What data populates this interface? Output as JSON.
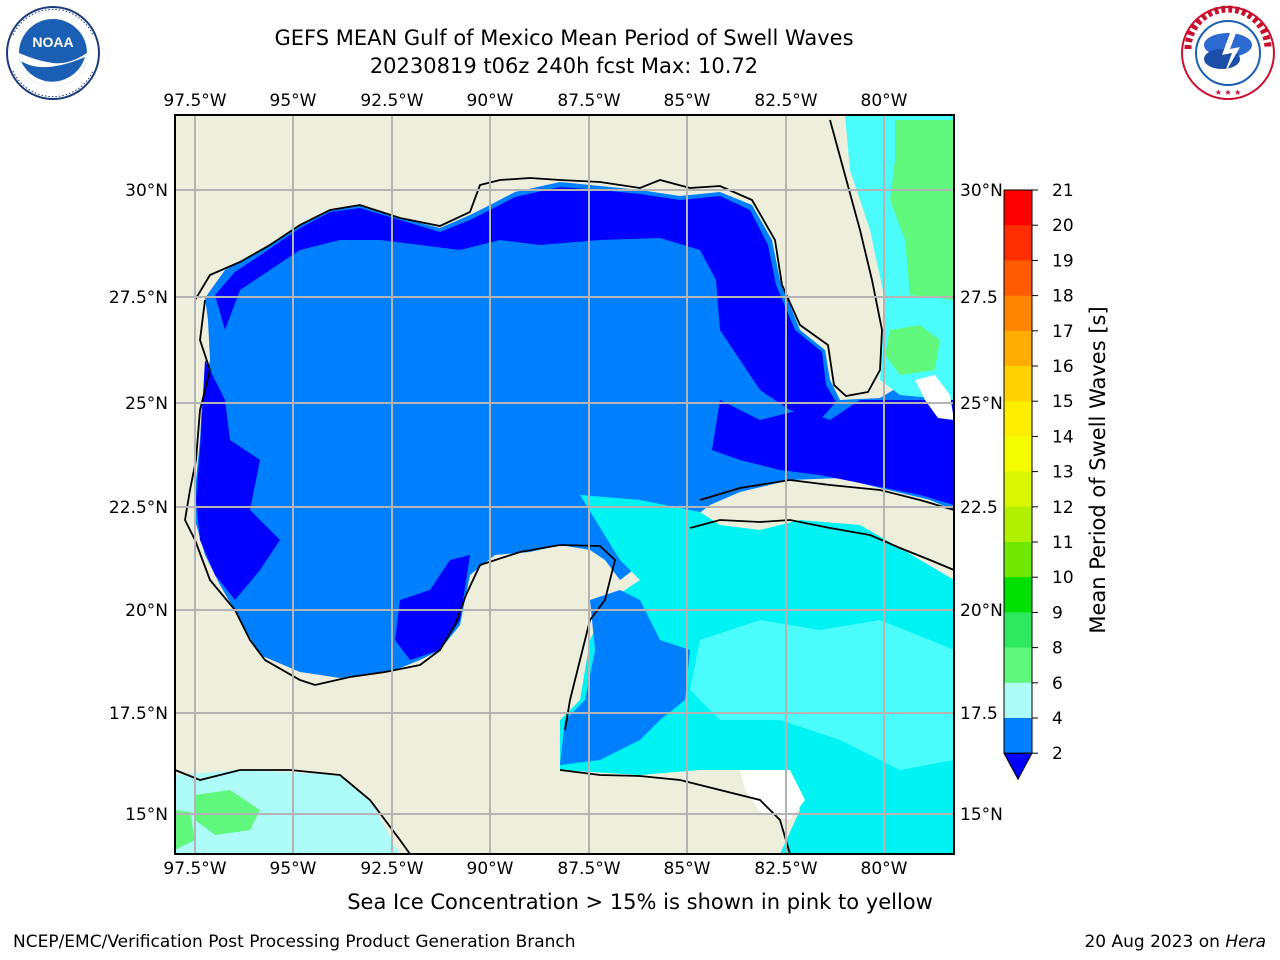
{
  "title": {
    "line1": "GEFS MEAN Gulf of Mexico Mean Period of Swell Waves",
    "line2": "20230819 t06z 240h fcst   Max: 10.72"
  },
  "logos": [
    {
      "name": "noaa-logo",
      "text": "NOAA"
    },
    {
      "name": "nws-logo",
      "text": "NATIONAL WEATHER SERVICE"
    }
  ],
  "map": {
    "lon_labels": [
      "97.5°W",
      "95°W",
      "92.5°W",
      "90°W",
      "87.5°W",
      "85°W",
      "82.5°W",
      "80°W"
    ],
    "lat_labels_left": [
      "30°N",
      "27.5°N",
      "25°N",
      "22.5°N",
      "20°N",
      "17.5°N",
      "15°N"
    ],
    "lat_labels_right": [
      "30°N",
      "27.5",
      "25°N",
      "22.5",
      "20°N",
      "17.5",
      "15°N"
    ],
    "colors": {
      "land": "#eeeedc",
      "grid": "#b4b4b4",
      "coast": "#000000"
    }
  },
  "colorbar": {
    "label": "Mean Period of Swell Waves [s]",
    "ticks": [
      "21",
      "20",
      "19",
      "18",
      "17",
      "16",
      "15",
      "14",
      "13",
      "12",
      "11",
      "10",
      "9",
      "8",
      "6",
      "4",
      "2"
    ],
    "colors": [
      "#ff0000",
      "#ff2d00",
      "#ff5a00",
      "#ff8400",
      "#ffad00",
      "#ffd200",
      "#ffee00",
      "#f4fc00",
      "#d8f700",
      "#b0f000",
      "#72e800",
      "#00e000",
      "#2ee860",
      "#5ff87d",
      "#aefcf8",
      "#4afcfc",
      "#00f3f3",
      "#0080ff"
    ],
    "extend_color": "#0000ff"
  },
  "caption": "Sea Ice Concentration > 15% is shown in pink to yellow",
  "footer": {
    "left": "NCEP/EMC/Verification Post Processing Product Generation Branch",
    "right_prefix": "20 Aug 2023 on ",
    "right_host": "Hera"
  }
}
